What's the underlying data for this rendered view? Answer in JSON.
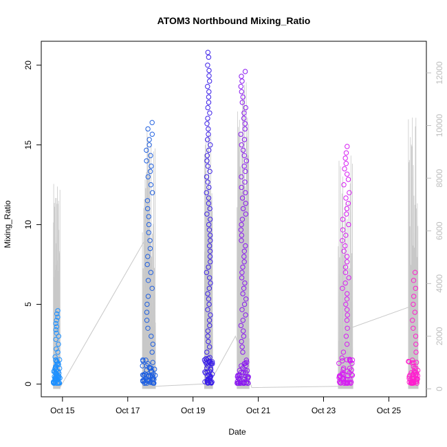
{
  "chart_data": {
    "type": "scatter",
    "title": "ATOM3 Northbound Mixing_Ratio",
    "xlabel": "Date",
    "ylabel": "Mixing_Ratio",
    "x_ticks": [
      "Oct 15",
      "Oct 17",
      "Oct 19",
      "Oct 21",
      "Oct 23",
      "Oct 25"
    ],
    "x_tick_days": [
      15,
      17,
      19,
      21,
      23,
      25
    ],
    "xlim_days": [
      14.35,
      26.15
    ],
    "ylim": [
      -0.8,
      21.5
    ],
    "y_ticks": [
      0,
      5,
      10,
      15,
      20
    ],
    "secondary_axis": {
      "label": "",
      "ylim": [
        -300,
        13200
      ],
      "ticks": [
        0,
        2000,
        4000,
        6000,
        8000,
        10000,
        12000
      ],
      "color": "#bdbdbd"
    },
    "grid": false,
    "legend": "none",
    "series": [
      {
        "color": "#1e90ff",
        "x_range_days": [
          14.72,
          14.93
        ],
        "y_points": [
          0.1,
          0.2,
          0.3,
          0.4,
          0.5,
          0.6,
          0.7,
          0.8,
          0.9,
          1.0,
          1.1,
          1.3,
          1.5,
          1.7,
          2.0,
          2.2,
          2.5,
          2.8,
          3.0,
          3.2,
          3.4,
          3.6,
          3.8,
          4.0,
          4.2,
          4.4,
          4.6
        ]
      },
      {
        "color": "#1e5fe0",
        "x_range_days": [
          17.45,
          17.85
        ],
        "y_points": [
          0.1,
          0.2,
          0.3,
          0.5,
          0.8,
          1.0,
          1.5,
          2.0,
          2.5,
          3.0,
          3.5,
          4.0,
          4.5,
          5.0,
          5.5,
          6.0,
          6.5,
          7.0,
          7.5,
          8.0,
          8.5,
          9.0,
          9.5,
          10.0,
          10.5,
          11.0,
          11.5,
          12.0,
          12.5,
          13.0,
          14.0,
          15.0,
          16.0,
          16.4
        ]
      },
      {
        "color": "#3a1ee8",
        "x_range_days": [
          19.35,
          19.6
        ],
        "y_points": [
          0.1,
          0.5,
          1.0,
          2.0,
          3.0,
          4.0,
          5.0,
          6.0,
          7.0,
          8.0,
          9.0,
          10.0,
          11.0,
          12.0,
          13.0,
          14.0,
          15.0,
          16.0,
          17.0,
          18.0,
          19.0,
          20.0,
          20.5,
          20.8
        ]
      },
      {
        "color": "#8a18f0",
        "x_range_days": [
          20.35,
          20.72
        ],
        "y_points": [
          0.1,
          0.5,
          1.0,
          1.5,
          2.0,
          3.0,
          4.0,
          5.0,
          6.0,
          7.0,
          8.0,
          9.0,
          10.0,
          11.0,
          12.0,
          13.0,
          14.0,
          15.0,
          16.0,
          17.0,
          18.0,
          19.0,
          19.6
        ]
      },
      {
        "color": "#d61ef2",
        "x_range_days": [
          23.45,
          23.9
        ],
        "y_points": [
          0.1,
          0.3,
          0.6,
          1.0,
          1.5,
          2.0,
          2.5,
          3.0,
          3.5,
          4.0,
          5.0,
          6.0,
          7.0,
          8.0,
          9.0,
          10.0,
          11.0,
          12.0,
          12.5,
          13.5,
          14.5,
          14.9
        ]
      },
      {
        "color": "#ff1ecf",
        "x_range_days": [
          25.6,
          25.9
        ],
        "y_points": [
          0.1,
          0.2,
          0.4,
          0.6,
          0.8,
          1.0,
          1.5,
          2.0,
          2.5,
          3.0,
          3.5,
          4.0,
          4.5,
          5.0,
          5.5,
          6.0,
          6.5,
          7.0
        ]
      }
    ],
    "secondary_series": {
      "color": "#c8c8c8",
      "connector_points": [
        {
          "x_days": 14.9,
          "y2": 0
        },
        {
          "x_days": 17.5,
          "y2": 5600
        },
        {
          "x_days": 17.85,
          "y2": 100
        },
        {
          "x_days": 19.5,
          "y2": 200
        },
        {
          "x_days": 20.3,
          "y2": 2000
        },
        {
          "x_days": 20.8,
          "y2": 50
        },
        {
          "x_days": 23.5,
          "y2": 100
        },
        {
          "x_days": 23.8,
          "y2": 2300
        },
        {
          "x_days": 25.6,
          "y2": 3100
        }
      ],
      "spike_max": [
        {
          "x_days": 14.85,
          "y2": 7800
        },
        {
          "x_days": 17.65,
          "y2": 10100
        },
        {
          "x_days": 19.5,
          "y2": 11500
        },
        {
          "x_days": 20.6,
          "y2": 11700
        },
        {
          "x_days": 23.6,
          "y2": 8900
        },
        {
          "x_days": 25.8,
          "y2": 10400
        }
      ]
    }
  }
}
